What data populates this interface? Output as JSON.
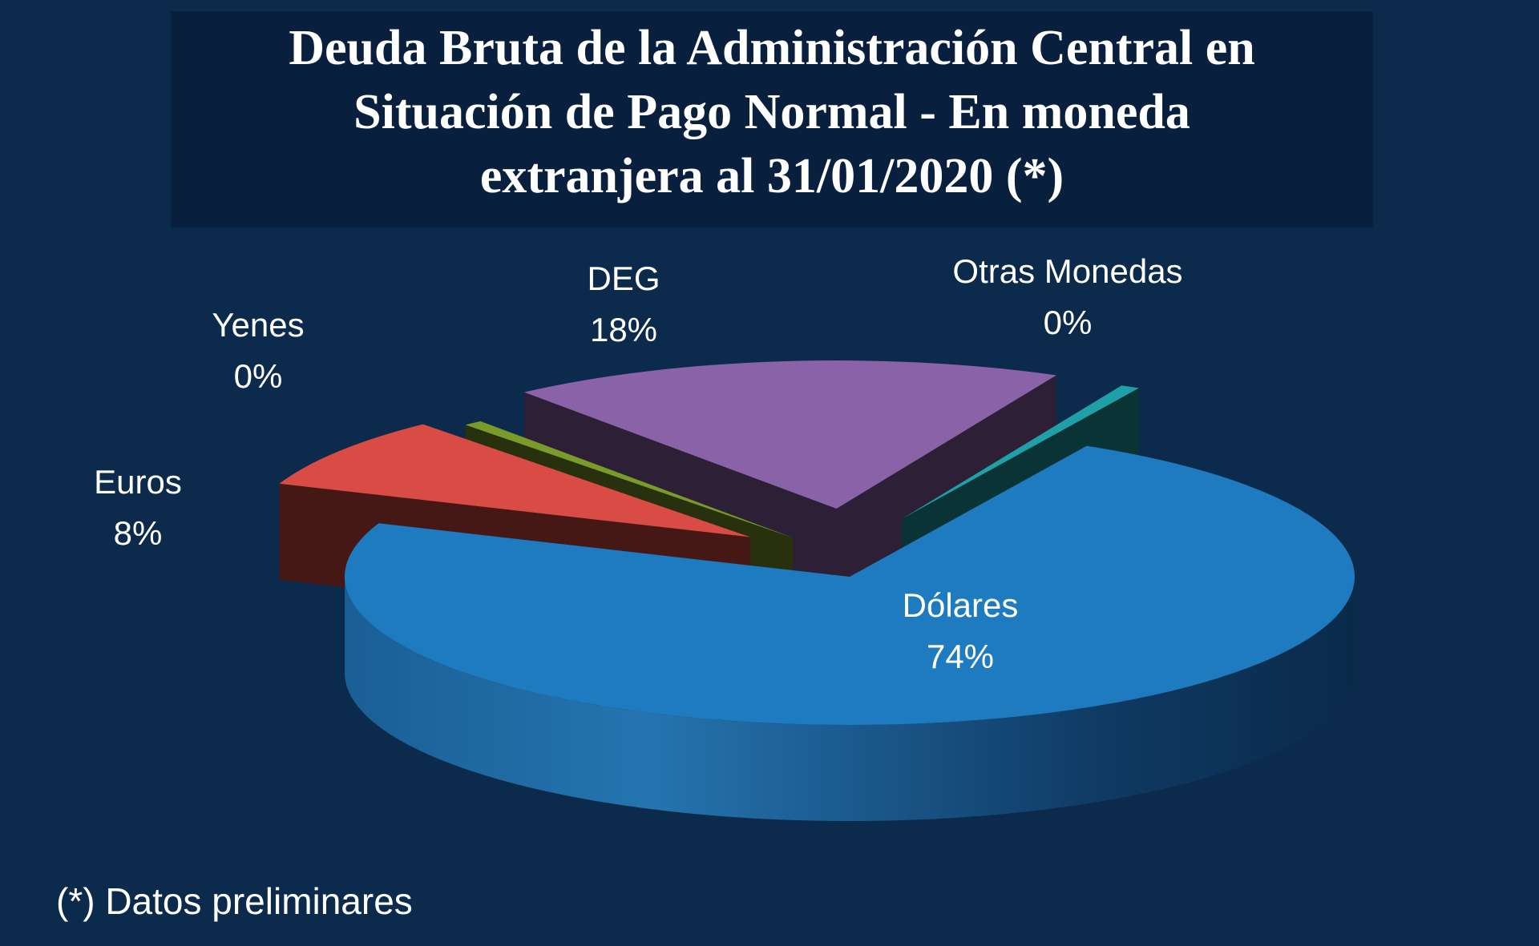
{
  "chart_data": {
    "type": "pie",
    "title": "Deuda Bruta de la Administración Central en Situación de Pago Normal - En moneda extranjera al 31/01/2020 (*)",
    "title_lines": [
      "Deuda Bruta de la Administración Central en",
      "Situación de Pago Normal - En moneda",
      "extranjera al 31/01/2020 (*)"
    ],
    "slices": [
      {
        "label": "Dólares",
        "value": 74,
        "value_label": "74%",
        "color": "#1e7bbf"
      },
      {
        "label": "Euros",
        "value": 8,
        "value_label": "8%",
        "color": "#d94b45"
      },
      {
        "label": "Yenes",
        "value": 0,
        "value_label": "0%",
        "color": "#7a9a2a"
      },
      {
        "label": "DEG",
        "value": 18,
        "value_label": "18%",
        "color": "#8a62a8"
      },
      {
        "label": "Otras Monedas",
        "value": 0,
        "value_label": "0%",
        "color": "#1fa0a8"
      }
    ],
    "style": "3d-exploded"
  },
  "footnote": "(*) Datos preliminares",
  "colors": {
    "background": "#0b2a4c",
    "title_panel": "#08203d",
    "text": "#ffffff"
  }
}
